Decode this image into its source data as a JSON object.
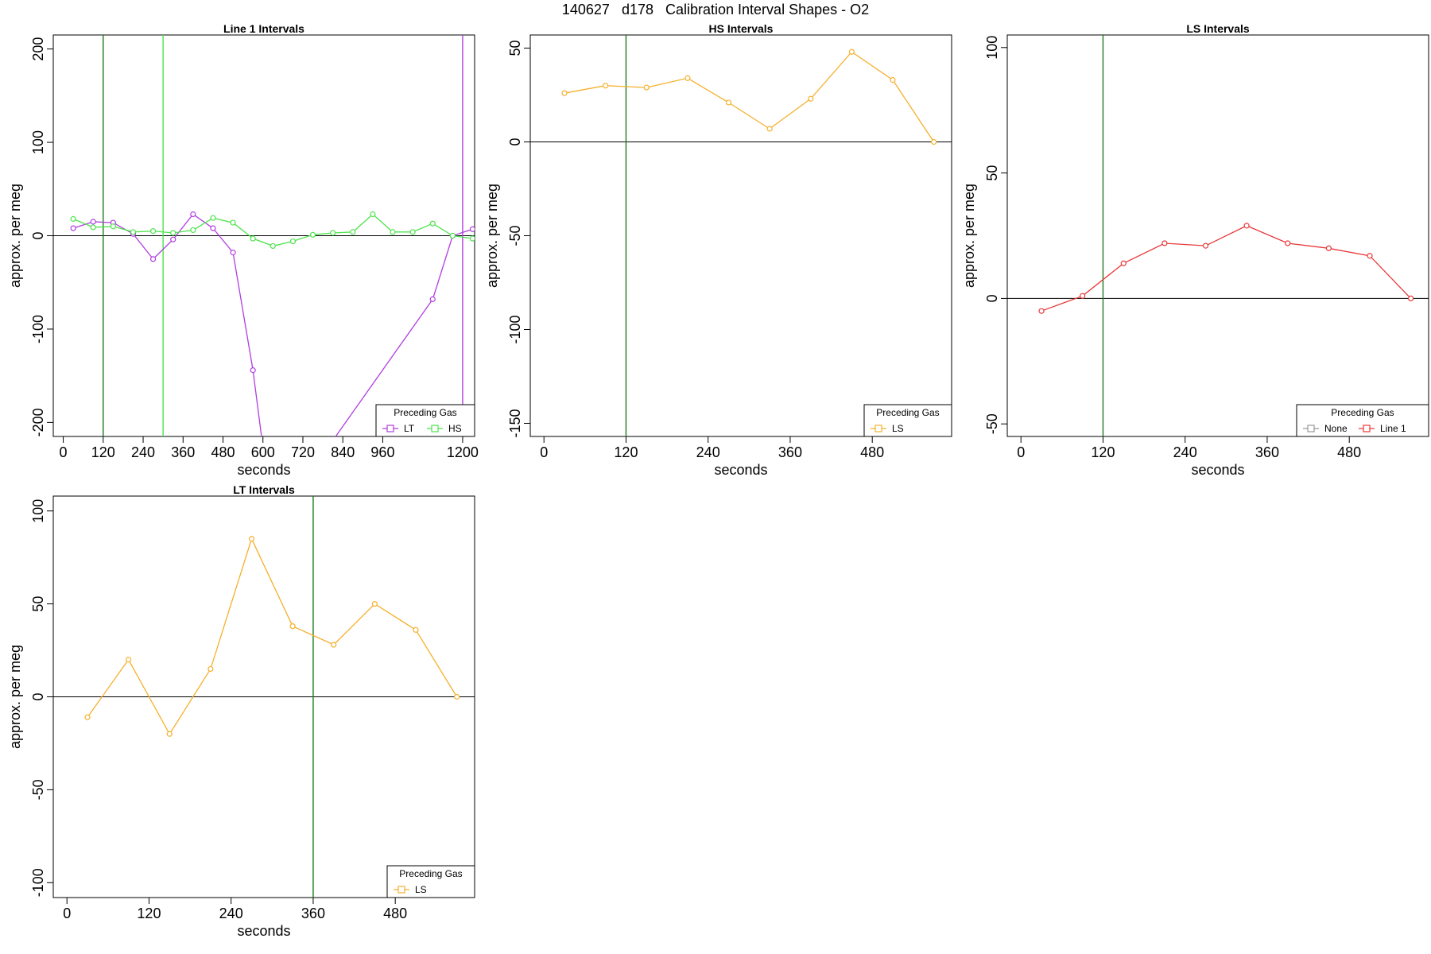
{
  "title": "140627   d178   Calibration Interval Shapes - O2",
  "colors": {
    "LT": "#b03ee0",
    "HS": "#4ce44c",
    "LS": "#f5b02c",
    "None": "#999999",
    "Line 1": "#e8383a",
    "vline": "#1e7a1e"
  },
  "chart_data": [
    {
      "type": "line",
      "title": "Line 1 Intervals",
      "xlabel": "seconds",
      "ylabel": "approx. per meg",
      "xlim": [
        -30,
        1236
      ],
      "ylim": [
        -215,
        215
      ],
      "xticks": [
        0,
        120,
        240,
        360,
        480,
        600,
        720,
        840,
        960,
        1200
      ],
      "yticks": [
        -200,
        -100,
        0,
        100,
        200
      ],
      "vlines": [
        {
          "x": 120,
          "color": "#1e7a1e"
        },
        {
          "x": 300,
          "color": "#4ce44c"
        },
        {
          "x": 1200,
          "color": "#b03ee0"
        }
      ],
      "hline": 0,
      "legend": {
        "title": "Preceding Gas",
        "position": "bottom-right",
        "entries": [
          "LT",
          "HS"
        ]
      },
      "series": [
        {
          "name": "LT",
          "x": [
            30,
            90,
            150,
            210,
            270,
            330,
            390,
            450,
            510,
            570,
            630,
            1110,
            1170,
            1230
          ],
          "y": [
            8,
            15,
            14,
            2,
            -25,
            -4,
            23,
            8,
            -18,
            -144,
            -310,
            -68,
            0,
            7
          ]
        },
        {
          "name": "HS",
          "x": [
            30,
            90,
            150,
            210,
            270,
            330,
            390,
            450,
            510,
            570,
            630,
            690,
            750,
            810,
            870,
            930,
            990,
            1050,
            1110,
            1170,
            1230
          ],
          "y": [
            18,
            9,
            10,
            4,
            5,
            3,
            6,
            19,
            14,
            -3,
            -11,
            -6,
            1,
            3,
            4,
            23,
            4,
            4,
            13,
            0,
            -3
          ]
        }
      ]
    },
    {
      "type": "line",
      "title": "HS Intervals",
      "xlabel": "seconds",
      "ylabel": "approx. per meg",
      "xlim": [
        -20,
        596
      ],
      "ylim": [
        -157,
        57
      ],
      "xticks": [
        0,
        120,
        240,
        360,
        480
      ],
      "yticks": [
        -150,
        -100,
        -50,
        0,
        50
      ],
      "vlines": [
        {
          "x": 120,
          "color": "#1e7a1e"
        }
      ],
      "hline": 0,
      "legend": {
        "title": "Preceding Gas",
        "position": "bottom-right",
        "entries": [
          "LS"
        ]
      },
      "series": [
        {
          "name": "LS",
          "x": [
            30,
            90,
            150,
            210,
            270,
            330,
            390,
            450,
            510,
            570
          ],
          "y": [
            26,
            30,
            29,
            34,
            21,
            7,
            23,
            48,
            33,
            0
          ]
        }
      ]
    },
    {
      "type": "line",
      "title": "LS Intervals",
      "xlabel": "seconds",
      "ylabel": "approx. per meg",
      "xlim": [
        -20,
        596
      ],
      "ylim": [
        -55,
        105
      ],
      "xticks": [
        0,
        120,
        240,
        360,
        480
      ],
      "yticks": [
        -50,
        0,
        50,
        100
      ],
      "vlines": [
        {
          "x": 120,
          "color": "#1e7a1e"
        }
      ],
      "hline": 0,
      "legend": {
        "title": "Preceding Gas",
        "position": "bottom-right",
        "entries": [
          "None",
          "Line 1"
        ]
      },
      "series": [
        {
          "name": "Line 1",
          "x": [
            30,
            90,
            150,
            210,
            270,
            330,
            390,
            450,
            510,
            570
          ],
          "y": [
            -5,
            1,
            14,
            22,
            21,
            29,
            22,
            20,
            17,
            0
          ]
        }
      ]
    },
    {
      "type": "line",
      "title": "LT Intervals",
      "xlabel": "seconds",
      "ylabel": "approx. per meg",
      "xlim": [
        -20,
        596
      ],
      "ylim": [
        -108,
        108
      ],
      "xticks": [
        0,
        120,
        240,
        360,
        480
      ],
      "yticks": [
        -100,
        -50,
        0,
        50,
        100
      ],
      "vlines": [
        {
          "x": 360,
          "color": "#1e7a1e"
        }
      ],
      "hline": 0,
      "legend": {
        "title": "Preceding Gas",
        "position": "bottom-right",
        "entries": [
          "LS"
        ]
      },
      "series": [
        {
          "name": "LS",
          "x": [
            30,
            90,
            150,
            210,
            270,
            330,
            390,
            450,
            510,
            570
          ],
          "y": [
            -11,
            20,
            -20,
            15,
            85,
            38,
            28,
            50,
            36,
            0
          ]
        }
      ]
    }
  ]
}
